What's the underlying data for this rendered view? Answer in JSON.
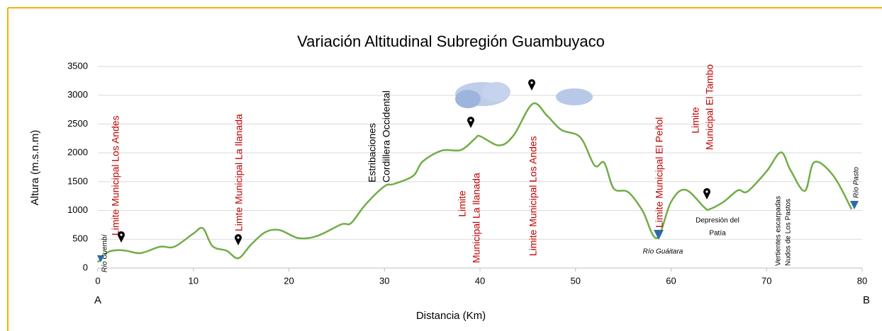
{
  "chart_data": {
    "type": "line",
    "title": "Variación Altitudinal Subregión Guambuyaco",
    "x_label": "Distancia (Km)",
    "y_label": "Altura (m.s.n.m)",
    "start_label": "A",
    "end_label": "B",
    "x": [
      0,
      1,
      2,
      3,
      4.5,
      6.5,
      8,
      10,
      11,
      12,
      13.5,
      14.7,
      16,
      17.5,
      19,
      21,
      23,
      25.5,
      26.5,
      28,
      30,
      31,
      33,
      34,
      36,
      38,
      39.5,
      40,
      42,
      43.5,
      45.5,
      47,
      48.5,
      50.5,
      52,
      53,
      54,
      55.5,
      57,
      58.5,
      60,
      61.5,
      63.5,
      64,
      65.5,
      67,
      68,
      70,
      71.5,
      72.5,
      74,
      75,
      77,
      78.9
    ],
    "series": [
      {
        "name": "Altura",
        "color": "#70ad47",
        "values": [
          100,
          270,
          310,
          300,
          260,
          370,
          370,
          600,
          690,
          380,
          300,
          170,
          400,
          620,
          660,
          520,
          560,
          760,
          780,
          1100,
          1420,
          1460,
          1600,
          1850,
          2040,
          2050,
          2250,
          2290,
          2130,
          2300,
          2850,
          2650,
          2400,
          2270,
          1780,
          1830,
          1380,
          1320,
          1000,
          520,
          1150,
          1360,
          1050,
          1020,
          1150,
          1350,
          1330,
          1680,
          2010,
          1700,
          1340,
          1840,
          1600,
          1020
        ]
      }
    ],
    "xlim": [
      0,
      80
    ],
    "xticks": [
      0,
      10,
      20,
      30,
      40,
      50,
      60,
      70,
      80
    ],
    "ylim": [
      0,
      3500
    ],
    "yticks": [
      0,
      500,
      1000,
      1500,
      2000,
      2500,
      3000,
      3500
    ],
    "grid": true,
    "annotations": [
      "Río Cuembí",
      "Limite Municipal Los Andes",
      "Limte Municipal La llanada",
      "Estribaciones",
      "Cordillera Occidental",
      "Limite",
      "Municipal La llanada",
      "Limite Municipal Los Andes",
      "Limite Municipal  El Peñol",
      "Limite",
      "Municipal El Tambo",
      "Depresión del",
      "Patía",
      "Río Guáitara",
      "Vertientes  escarpadas",
      "Nudos de Los Pastos",
      "Río Pasto"
    ]
  }
}
